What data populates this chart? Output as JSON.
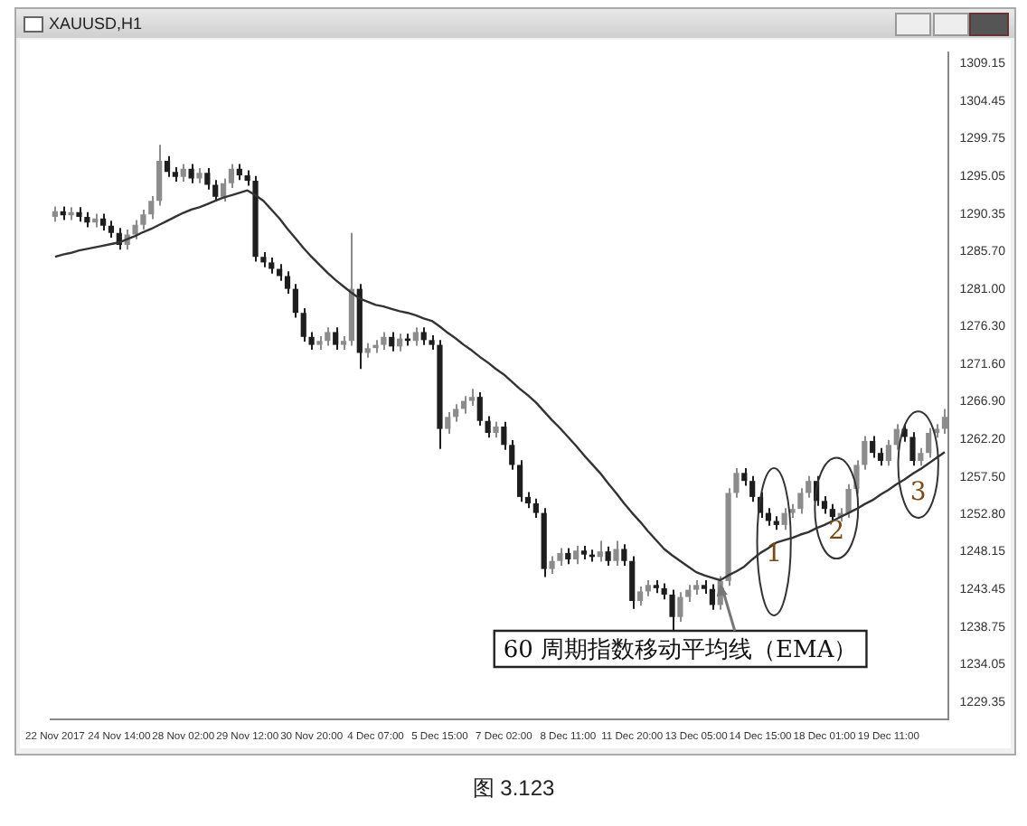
{
  "chart_data": {
    "type": "candlestick",
    "title": "XAUUSD,H1",
    "categories": [
      "22 Nov 2017",
      null,
      null,
      null,
      null,
      null,
      null,
      null,
      "24 Nov 14:00",
      null,
      null,
      null,
      null,
      null,
      null,
      null,
      "28 Nov 02:00",
      null,
      null,
      null,
      null,
      null,
      null,
      null,
      "29 Nov 12:00",
      null,
      null,
      null,
      null,
      null,
      null,
      null,
      "30 Nov 20:00",
      null,
      null,
      null,
      null,
      null,
      null,
      null,
      "4 Dec 07:00",
      null,
      null,
      null,
      null,
      null,
      null,
      null,
      "5 Dec 15:00",
      null,
      null,
      null,
      null,
      null,
      null,
      null,
      "7 Dec 02:00",
      null,
      null,
      null,
      null,
      null,
      null,
      null,
      "8 Dec 11:00",
      null,
      null,
      null,
      null,
      null,
      null,
      null,
      "11 Dec 20:00",
      null,
      null,
      null,
      null,
      null,
      null,
      null,
      "13 Dec 05:00",
      null,
      null,
      null,
      null,
      null,
      null,
      null,
      "14 Dec 15:00",
      null,
      null,
      null,
      null,
      null,
      null,
      null,
      "18 Dec 01:00",
      null,
      null,
      null,
      null,
      null,
      null,
      null,
      "19 Dec 11:00",
      null,
      null,
      null,
      null,
      null,
      null,
      null
    ],
    "ohlc": [
      [
        1290.0,
        1291.3,
        1289.4,
        1290.7
      ],
      [
        1290.7,
        1291.3,
        1289.6,
        1290.2
      ],
      [
        1290.2,
        1291.2,
        1289.6,
        1290.6
      ],
      [
        1290.6,
        1291.2,
        1289.4,
        1290.0
      ],
      [
        1290.0,
        1290.6,
        1288.7,
        1289.3
      ],
      [
        1289.3,
        1290.4,
        1288.7,
        1289.8
      ],
      [
        1289.8,
        1290.4,
        1288.3,
        1288.9
      ],
      [
        1288.9,
        1289.5,
        1287.4,
        1288.0
      ],
      [
        1288.0,
        1288.6,
        1285.9,
        1286.5
      ],
      [
        1286.5,
        1288.4,
        1285.9,
        1287.8
      ],
      [
        1287.8,
        1289.6,
        1287.2,
        1289.0
      ],
      [
        1289.0,
        1290.9,
        1288.4,
        1290.3
      ],
      [
        1290.3,
        1292.6,
        1289.7,
        1292.0
      ],
      [
        1292.0,
        1299.0,
        1291.4,
        1297.0
      ],
      [
        1297.0,
        1297.6,
        1295.0,
        1295.6
      ],
      [
        1295.6,
        1296.2,
        1294.4,
        1295.0
      ],
      [
        1295.0,
        1296.6,
        1294.4,
        1296.0
      ],
      [
        1296.0,
        1296.6,
        1294.2,
        1294.8
      ],
      [
        1294.8,
        1296.1,
        1294.2,
        1295.5
      ],
      [
        1295.5,
        1296.1,
        1293.4,
        1294.0
      ],
      [
        1294.0,
        1294.6,
        1291.9,
        1292.5
      ],
      [
        1292.5,
        1294.8,
        1291.9,
        1294.2
      ],
      [
        1294.2,
        1296.6,
        1293.6,
        1296.0
      ],
      [
        1296.0,
        1296.6,
        1294.6,
        1295.2
      ],
      [
        1295.2,
        1295.8,
        1293.9,
        1294.5
      ],
      [
        1294.5,
        1295.1,
        1284.4,
        1285.0
      ],
      [
        1285.0,
        1285.6,
        1283.7,
        1284.3
      ],
      [
        1284.3,
        1284.9,
        1282.9,
        1283.5
      ],
      [
        1283.5,
        1284.1,
        1282.0,
        1282.6
      ],
      [
        1282.6,
        1283.2,
        1280.4,
        1281.0
      ],
      [
        1281.0,
        1281.6,
        1277.4,
        1278.0
      ],
      [
        1278.0,
        1278.6,
        1274.4,
        1275.0
      ],
      [
        1275.0,
        1275.6,
        1273.4,
        1274.0
      ],
      [
        1274.0,
        1275.1,
        1273.4,
        1274.5
      ],
      [
        1274.5,
        1276.2,
        1273.9,
        1275.6
      ],
      [
        1275.6,
        1276.2,
        1273.4,
        1274.0
      ],
      [
        1274.0,
        1275.1,
        1273.4,
        1274.5
      ],
      [
        1274.5,
        1288.0,
        1273.9,
        1281.0
      ],
      [
        1281.0,
        1281.6,
        1271.0,
        1273.0
      ],
      [
        1273.0,
        1274.2,
        1272.4,
        1273.6
      ],
      [
        1273.6,
        1274.6,
        1273.0,
        1274.0
      ],
      [
        1274.0,
        1275.6,
        1273.4,
        1275.0
      ],
      [
        1275.0,
        1275.6,
        1273.2,
        1273.8
      ],
      [
        1273.8,
        1275.4,
        1273.2,
        1274.8
      ],
      [
        1274.8,
        1275.4,
        1273.9,
        1274.5
      ],
      [
        1274.5,
        1276.2,
        1273.9,
        1275.6
      ],
      [
        1275.6,
        1276.2,
        1274.0,
        1274.6
      ],
      [
        1274.6,
        1275.2,
        1273.4,
        1274.0
      ],
      [
        1274.0,
        1274.6,
        1261.0,
        1263.5
      ],
      [
        1263.5,
        1265.6,
        1262.9,
        1265.0
      ],
      [
        1265.0,
        1266.6,
        1264.4,
        1266.0
      ],
      [
        1266.0,
        1267.6,
        1265.4,
        1267.0
      ],
      [
        1267.0,
        1268.5,
        1266.4,
        1267.5
      ],
      [
        1267.5,
        1268.1,
        1263.9,
        1264.5
      ],
      [
        1264.5,
        1265.1,
        1262.4,
        1263.0
      ],
      [
        1263.0,
        1264.4,
        1262.4,
        1263.8
      ],
      [
        1263.8,
        1264.4,
        1260.9,
        1261.5
      ],
      [
        1261.5,
        1262.1,
        1258.4,
        1259.0
      ],
      [
        1259.0,
        1259.6,
        1254.4,
        1255.0
      ],
      [
        1255.0,
        1255.6,
        1253.6,
        1254.2
      ],
      [
        1254.2,
        1254.8,
        1252.4,
        1253.0
      ],
      [
        1253.0,
        1253.6,
        1245.0,
        1246.0
      ],
      [
        1246.0,
        1247.6,
        1245.4,
        1247.0
      ],
      [
        1247.0,
        1248.6,
        1246.4,
        1248.0
      ],
      [
        1248.0,
        1248.6,
        1246.6,
        1247.2
      ],
      [
        1247.2,
        1248.9,
        1246.6,
        1248.3
      ],
      [
        1248.3,
        1248.9,
        1247.2,
        1247.8
      ],
      [
        1247.8,
        1248.4,
        1246.9,
        1247.5
      ],
      [
        1247.5,
        1249.5,
        1246.9,
        1248.2
      ],
      [
        1248.2,
        1248.8,
        1246.4,
        1247.0
      ],
      [
        1247.0,
        1249.5,
        1246.4,
        1248.5
      ],
      [
        1248.5,
        1249.1,
        1246.4,
        1247.0
      ],
      [
        1247.0,
        1247.6,
        1241.0,
        1242.0
      ],
      [
        1242.0,
        1243.8,
        1241.4,
        1243.2
      ],
      [
        1243.2,
        1244.6,
        1242.6,
        1244.0
      ],
      [
        1244.0,
        1244.6,
        1243.0,
        1243.6
      ],
      [
        1243.6,
        1244.2,
        1242.2,
        1242.8
      ],
      [
        1242.8,
        1243.4,
        1238.0,
        1240.0
      ],
      [
        1240.0,
        1243.1,
        1239.4,
        1242.5
      ],
      [
        1242.5,
        1244.0,
        1241.9,
        1243.4
      ],
      [
        1243.4,
        1244.6,
        1242.8,
        1244.0
      ],
      [
        1244.0,
        1244.6,
        1242.9,
        1243.5
      ],
      [
        1243.5,
        1244.1,
        1240.9,
        1241.5
      ],
      [
        1241.5,
        1245.1,
        1240.9,
        1244.5
      ],
      [
        1244.5,
        1256.1,
        1243.9,
        1255.5
      ],
      [
        1255.5,
        1258.6,
        1254.9,
        1258.0
      ],
      [
        1258.0,
        1258.6,
        1256.4,
        1257.0
      ],
      [
        1257.0,
        1257.6,
        1254.4,
        1255.0
      ],
      [
        1255.0,
        1255.6,
        1252.4,
        1253.0
      ],
      [
        1253.0,
        1253.6,
        1251.4,
        1252.0
      ],
      [
        1252.0,
        1252.6,
        1250.9,
        1251.5
      ],
      [
        1251.5,
        1253.6,
        1250.9,
        1253.0
      ],
      [
        1253.0,
        1254.1,
        1252.4,
        1253.5
      ],
      [
        1253.5,
        1256.1,
        1252.9,
        1255.5
      ],
      [
        1255.5,
        1257.6,
        1254.9,
        1257.0
      ],
      [
        1257.0,
        1257.6,
        1253.9,
        1254.5
      ],
      [
        1254.5,
        1255.1,
        1252.9,
        1253.5
      ],
      [
        1253.5,
        1254.1,
        1251.9,
        1252.5
      ],
      [
        1252.5,
        1253.6,
        1251.9,
        1253.0
      ],
      [
        1253.0,
        1256.6,
        1252.4,
        1256.0
      ],
      [
        1256.0,
        1259.6,
        1255.4,
        1259.0
      ],
      [
        1259.0,
        1262.6,
        1258.4,
        1262.0
      ],
      [
        1262.0,
        1262.6,
        1259.9,
        1260.5
      ],
      [
        1260.5,
        1261.1,
        1258.9,
        1259.5
      ],
      [
        1259.5,
        1262.1,
        1258.9,
        1261.5
      ],
      [
        1261.5,
        1264.1,
        1260.9,
        1263.5
      ],
      [
        1263.5,
        1264.1,
        1261.9,
        1262.5
      ],
      [
        1262.5,
        1263.1,
        1258.9,
        1259.5
      ],
      [
        1259.5,
        1261.1,
        1258.9,
        1260.5
      ],
      [
        1260.5,
        1263.6,
        1259.9,
        1263.0
      ],
      [
        1263.0,
        1264.1,
        1262.4,
        1263.5
      ],
      [
        1263.5,
        1266.0,
        1262.9,
        1265.0
      ]
    ],
    "colors": [
      "#8c8c8c",
      "#1e1e1e",
      "#8c8c8c",
      "#1e1e1e",
      "#1e1e1e",
      "#8c8c8c",
      "#1e1e1e",
      "#1e1e1e",
      "#1e1e1e",
      "#8c8c8c",
      "#8c8c8c",
      "#8c8c8c",
      "#8c8c8c",
      "#8c8c8c",
      "#1e1e1e",
      "#1e1e1e",
      "#8c8c8c",
      "#1e1e1e",
      "#8c8c8c",
      "#1e1e1e",
      "#1e1e1e",
      "#8c8c8c",
      "#8c8c8c",
      "#1e1e1e",
      "#1e1e1e",
      "#1e1e1e",
      "#1e1e1e",
      "#1e1e1e",
      "#1e1e1e",
      "#1e1e1e",
      "#1e1e1e",
      "#1e1e1e",
      "#1e1e1e",
      "#8c8c8c",
      "#8c8c8c",
      "#1e1e1e",
      "#8c8c8c",
      "#8c8c8c",
      "#1e1e1e",
      "#8c8c8c",
      "#8c8c8c",
      "#8c8c8c",
      "#1e1e1e",
      "#8c8c8c",
      "#1e1e1e",
      "#8c8c8c",
      "#1e1e1e",
      "#1e1e1e",
      "#1e1e1e",
      "#8c8c8c",
      "#8c8c8c",
      "#8c8c8c",
      "#8c8c8c",
      "#1e1e1e",
      "#1e1e1e",
      "#8c8c8c",
      "#1e1e1e",
      "#1e1e1e",
      "#1e1e1e",
      "#1e1e1e",
      "#1e1e1e",
      "#1e1e1e",
      "#8c8c8c",
      "#8c8c8c",
      "#1e1e1e",
      "#8c8c8c",
      "#1e1e1e",
      "#1e1e1e",
      "#8c8c8c",
      "#1e1e1e",
      "#8c8c8c",
      "#1e1e1e",
      "#1e1e1e",
      "#8c8c8c",
      "#8c8c8c",
      "#1e1e1e",
      "#1e1e1e",
      "#1e1e1e",
      "#8c8c8c",
      "#8c8c8c",
      "#8c8c8c",
      "#1e1e1e",
      "#1e1e1e",
      "#8c8c8c",
      "#8c8c8c",
      "#8c8c8c",
      "#1e1e1e",
      "#1e1e1e",
      "#1e1e1e",
      "#1e1e1e",
      "#1e1e1e",
      "#8c8c8c",
      "#8c8c8c",
      "#8c8c8c",
      "#8c8c8c",
      "#1e1e1e",
      "#1e1e1e",
      "#1e1e1e",
      "#8c8c8c",
      "#8c8c8c",
      "#8c8c8c",
      "#8c8c8c",
      "#1e1e1e",
      "#1e1e1e",
      "#8c8c8c",
      "#8c8c8c",
      "#1e1e1e",
      "#1e1e1e",
      "#8c8c8c",
      "#8c8c8c",
      "#8c8c8c",
      "#8c8c8c"
    ],
    "series": [
      {
        "type": "line",
        "name": "60 周期指数移动平均线（EMA）",
        "color": "#333333",
        "values": [
          1285.0,
          1285.3,
          1285.5,
          1285.8,
          1286.0,
          1286.2,
          1286.4,
          1286.6,
          1286.8,
          1287.2,
          1287.6,
          1288.1,
          1288.5,
          1289.0,
          1289.5,
          1290.0,
          1290.5,
          1290.9,
          1291.2,
          1291.6,
          1292.0,
          1292.4,
          1292.7,
          1293.0,
          1293.3,
          1292.7,
          1292.0,
          1290.9,
          1289.8,
          1288.5,
          1287.3,
          1286.1,
          1285.0,
          1284.0,
          1283.0,
          1282.1,
          1281.3,
          1280.5,
          1279.8,
          1279.4,
          1279.0,
          1278.8,
          1278.5,
          1278.2,
          1278.0,
          1277.7,
          1277.3,
          1277.0,
          1276.3,
          1275.5,
          1274.8,
          1274.0,
          1273.3,
          1272.5,
          1271.8,
          1271.0,
          1270.3,
          1269.4,
          1268.5,
          1267.7,
          1266.8,
          1265.7,
          1264.6,
          1263.6,
          1262.5,
          1261.4,
          1260.2,
          1259.1,
          1258.0,
          1256.7,
          1255.5,
          1254.2,
          1253.0,
          1251.9,
          1250.7,
          1249.6,
          1248.5,
          1247.7,
          1247.0,
          1246.3,
          1245.6,
          1245.2,
          1244.9,
          1244.6,
          1245.2,
          1245.7,
          1246.3,
          1247.2,
          1248.0,
          1248.6,
          1249.3,
          1249.6,
          1249.9,
          1250.3,
          1250.6,
          1251.1,
          1251.5,
          1252.0,
          1252.5,
          1253.0,
          1253.5,
          1254.1,
          1254.6,
          1255.3,
          1255.9,
          1256.6,
          1257.2,
          1257.9,
          1258.5,
          1259.2,
          1259.9,
          1260.6
        ]
      }
    ],
    "ylim": [
      1227.2,
      1310.5
    ],
    "yticks": [
      1309.15,
      1304.45,
      1299.75,
      1295.05,
      1290.35,
      {
        "value": 1285.7,
        "label": "1285.70"
      },
      {
        "value": 1281,
        "label": "1281.00"
      },
      {
        "value": 1276.3,
        "label": "1276.30"
      },
      {
        "value": 1271.6,
        "label": "1271.60"
      },
      {
        "value": 1266.9,
        "label": "1266.90"
      },
      {
        "value": 1262.2,
        "label": "1262.20"
      },
      {
        "value": 1257.5,
        "label": "1257.50"
      },
      {
        "value": 1252.8,
        "label": "1252.80"
      },
      1248.15,
      1243.45,
      1238.75,
      1234.05,
      1229.35
    ],
    "grid": false,
    "legend": false,
    "annotations": [
      "1",
      "2",
      "3",
      "图 3.123"
    ]
  }
}
